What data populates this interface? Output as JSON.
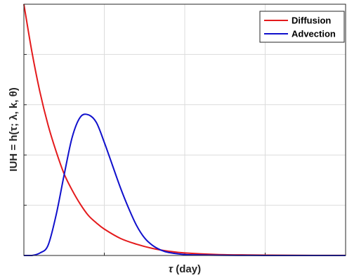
{
  "chart_data": {
    "type": "line",
    "title": "",
    "xlabel_symbol": "τ",
    "xlabel_unit": " (day)",
    "ylabel": "IUH = h(τ; λ, k, θ)",
    "xlim": [
      0,
      10
    ],
    "ylim": [
      0,
      1
    ],
    "grid": true,
    "tick_labels_visible": false,
    "x_ticks": [
      0,
      2.5,
      5,
      7.5,
      10
    ],
    "y_ticks": [
      0,
      0.2,
      0.4,
      0.6,
      0.8,
      1.0
    ],
    "legend_position": "top-right",
    "series": [
      {
        "name": "Diffusion",
        "color": "#e41a1c",
        "x": [
          0,
          0.25,
          0.5,
          0.75,
          1,
          1.25,
          1.5,
          1.75,
          2,
          2.25,
          2.5,
          3,
          3.5,
          4,
          4.5,
          5,
          6,
          7,
          8,
          9,
          10
        ],
        "y": [
          1.0,
          0.81,
          0.65,
          0.52,
          0.415,
          0.325,
          0.26,
          0.205,
          0.16,
          0.13,
          0.105,
          0.068,
          0.045,
          0.028,
          0.017,
          0.01,
          0.004,
          0.002,
          0.001,
          0.0004,
          0.0002
        ]
      },
      {
        "name": "Advection",
        "color": "#1010cc",
        "x": [
          0,
          0.25,
          0.5,
          0.75,
          1,
          1.25,
          1.5,
          1.75,
          2,
          2.25,
          2.5,
          2.75,
          3,
          3.25,
          3.5,
          3.75,
          4,
          4.25,
          4.5,
          5,
          5.5,
          6,
          7,
          8,
          9,
          10
        ],
        "y": [
          0,
          0.0,
          0.01,
          0.04,
          0.16,
          0.32,
          0.47,
          0.55,
          0.56,
          0.53,
          0.45,
          0.36,
          0.27,
          0.19,
          0.12,
          0.07,
          0.04,
          0.022,
          0.012,
          0.004,
          0.002,
          0.001,
          0.0003,
          0.0001,
          0.0,
          0.0
        ]
      }
    ]
  }
}
